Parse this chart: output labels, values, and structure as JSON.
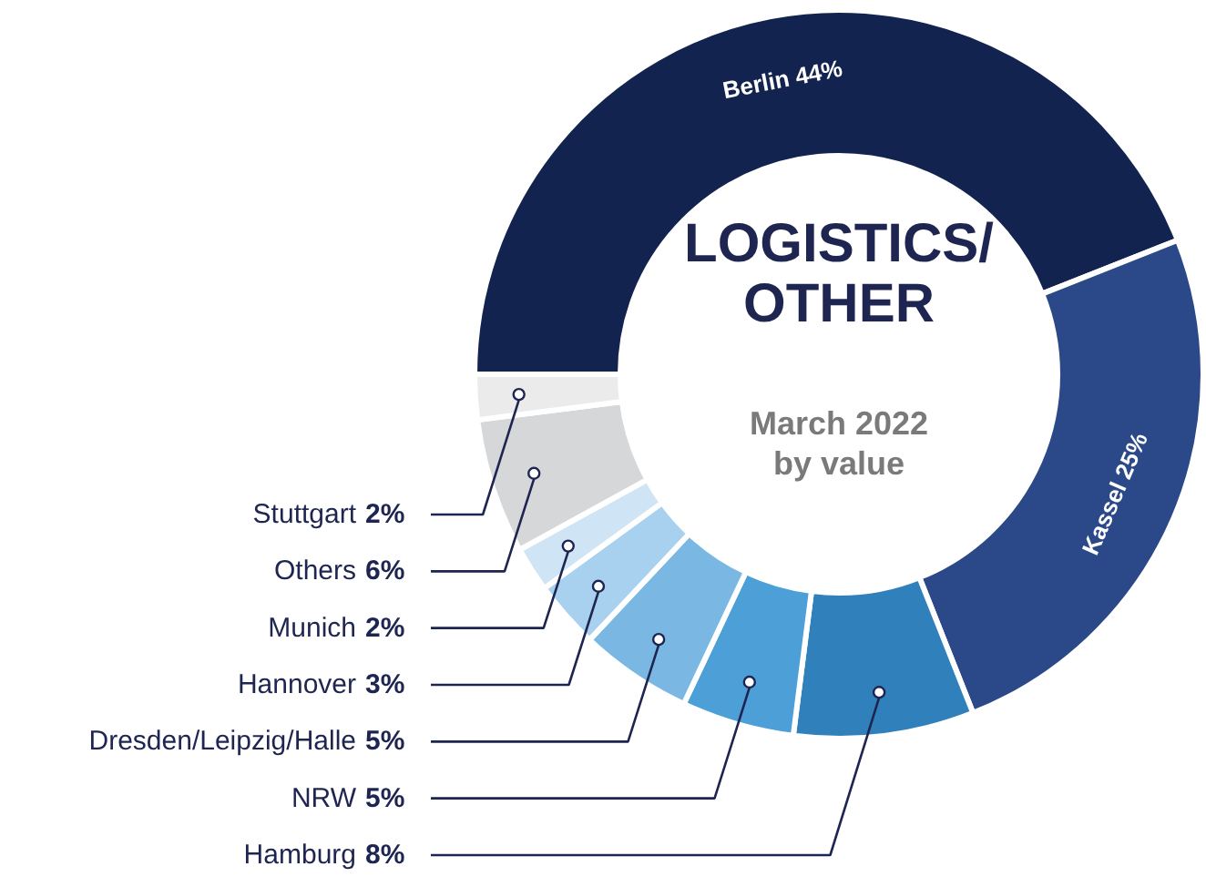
{
  "chart_data": {
    "type": "donut",
    "title": "LOGISTICS/\nOTHER",
    "subtitle": "March 2022\nby value",
    "categories": [
      "Berlin",
      "Kassel",
      "Hamburg",
      "NRW",
      "Dresden/Leipzig/Halle",
      "Hannover",
      "Munich",
      "Others",
      "Stuttgart"
    ],
    "values": [
      44,
      25,
      8,
      5,
      5,
      3,
      2,
      6,
      2
    ],
    "value_labels": [
      "44%",
      "25%",
      "8%",
      "5%",
      "5%",
      "3%",
      "2%",
      "6%",
      "2%"
    ],
    "colors": [
      "#13234f",
      "#2b4888",
      "#2f80bb",
      "#4d9fd7",
      "#7ab8e3",
      "#a7d1ef",
      "#cfe5f6",
      "#d6d7d9",
      "#ebebeb"
    ]
  }
}
